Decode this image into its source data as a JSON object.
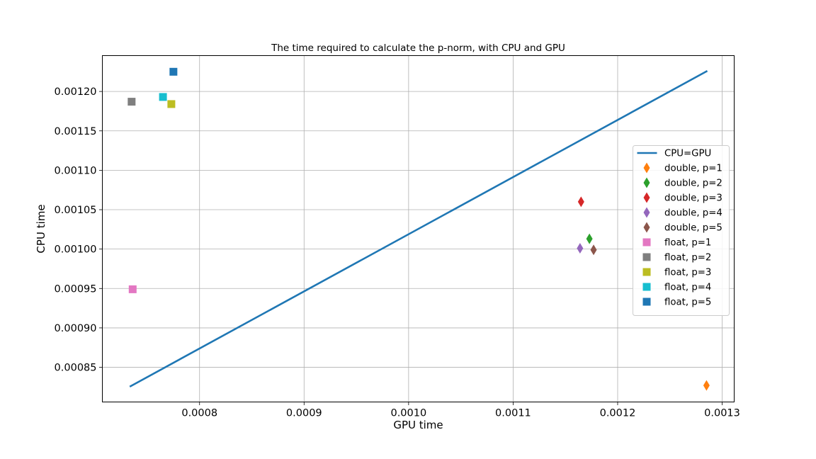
{
  "chart_data": {
    "type": "scatter",
    "title": "The time required to calculate the p-norm, with CPU and GPU",
    "xlabel": "GPU time",
    "ylabel": "CPU time",
    "xlim": [
      0.000707,
      0.0013115
    ],
    "ylim": [
      0.000806,
      0.0012455
    ],
    "xticks": [
      0.0008,
      0.0009,
      0.001,
      0.0011,
      0.0012,
      0.0013
    ],
    "xtick_labels": [
      "0.0008",
      "0.0009",
      "0.0010",
      "0.0011",
      "0.0012",
      "0.0013"
    ],
    "yticks": [
      0.00085,
      0.0009,
      0.00095,
      0.001,
      0.00105,
      0.0011,
      0.00115,
      0.0012
    ],
    "ytick_labels": [
      "0.00085",
      "0.00090",
      "0.00095",
      "0.00100",
      "0.00105",
      "0.00110",
      "0.00115",
      "0.00120"
    ],
    "grid": true,
    "legend_position": "center-right",
    "line": {
      "name": "CPU=GPU",
      "color": "#1f77b4",
      "x": [
        0.000734,
        0.001285
      ],
      "y": [
        0.000826,
        0.0012255
      ]
    },
    "series": [
      {
        "name": "double, p=1",
        "marker": "diamond",
        "color": "#ff7f0e",
        "x": 0.001285,
        "y": 0.000827
      },
      {
        "name": "double, p=2",
        "marker": "diamond",
        "color": "#2ca02c",
        "x": 0.001173,
        "y": 0.001013
      },
      {
        "name": "double, p=3",
        "marker": "diamond",
        "color": "#d62728",
        "x": 0.001165,
        "y": 0.00106
      },
      {
        "name": "double, p=4",
        "marker": "diamond",
        "color": "#9467bd",
        "x": 0.001164,
        "y": 0.001001
      },
      {
        "name": "double, p=5",
        "marker": "diamond",
        "color": "#8c564b",
        "x": 0.001177,
        "y": 0.000999
      },
      {
        "name": "float, p=1",
        "marker": "square",
        "color": "#e377c2",
        "x": 0.000736,
        "y": 0.000949
      },
      {
        "name": "float, p=2",
        "marker": "square",
        "color": "#7f7f7f",
        "x": 0.000735,
        "y": 0.001187
      },
      {
        "name": "float, p=3",
        "marker": "square",
        "color": "#bcbd22",
        "x": 0.000773,
        "y": 0.001184
      },
      {
        "name": "float, p=4",
        "marker": "square",
        "color": "#17becf",
        "x": 0.000765,
        "y": 0.001193
      },
      {
        "name": "float, p=5",
        "marker": "square",
        "color": "#1f77b4",
        "x": 0.000775,
        "y": 0.001225
      }
    ]
  }
}
